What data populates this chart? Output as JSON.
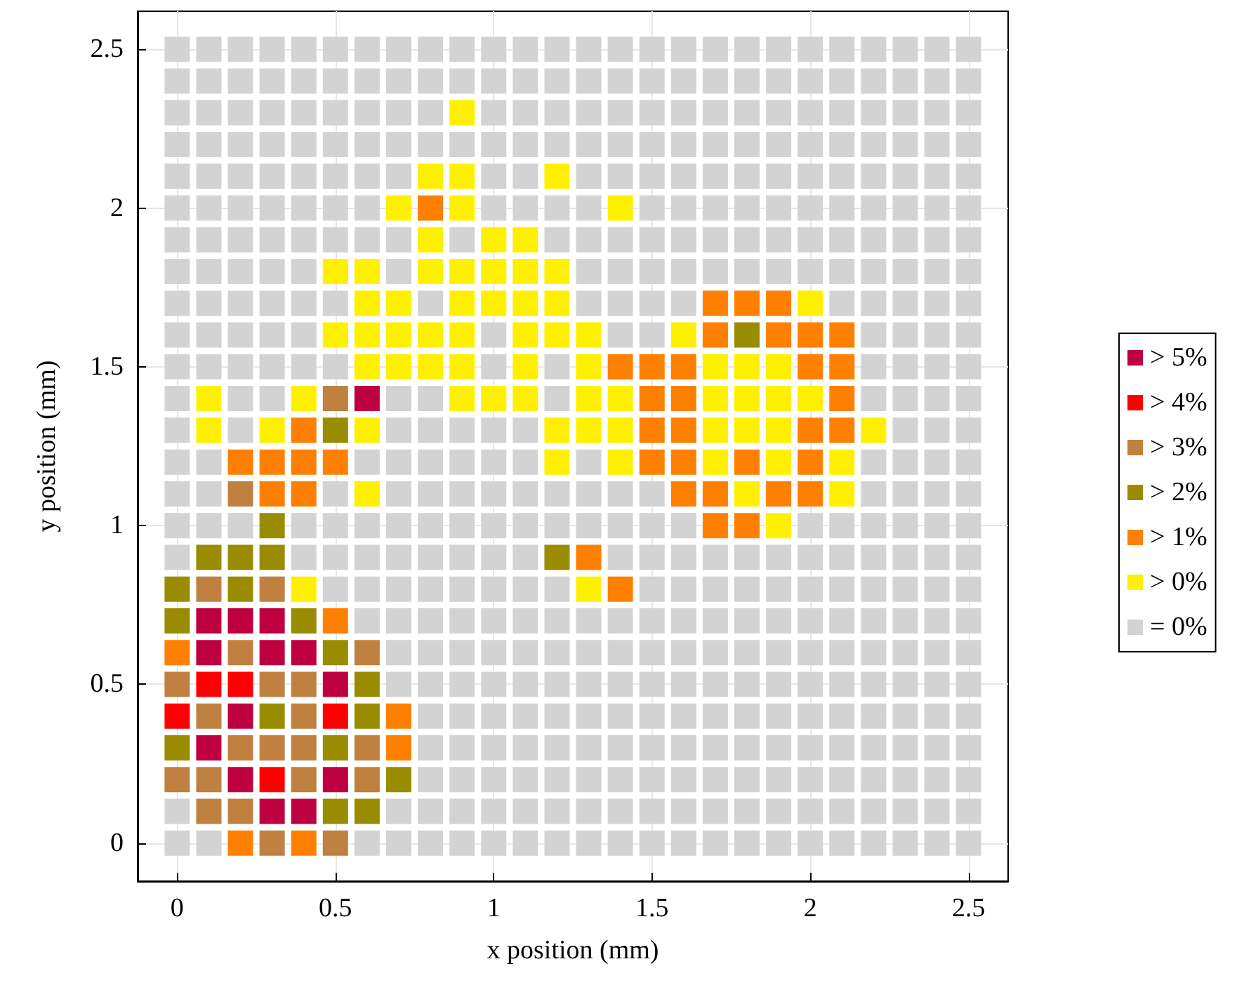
{
  "chart_data": {
    "type": "scatter",
    "xlabel": "x position (mm)",
    "ylabel": "y position (mm)",
    "xlim": [
      -0.125,
      2.625
    ],
    "ylim": [
      -0.12,
      2.62
    ],
    "xticks": [
      0,
      0.5,
      1,
      1.5,
      2,
      2.5
    ],
    "yticks": [
      0,
      0.5,
      1,
      1.5,
      2,
      2.5
    ],
    "grid": true,
    "legend": "right",
    "marker": "square",
    "series": [
      {
        "name": "> 5%",
        "color": "#bf0040",
        "x": [
          0.3,
          0.4,
          0.2,
          0.5,
          0.1,
          0.2,
          0.5,
          0.1,
          0.3,
          0.4,
          0.1,
          0.2,
          0.3,
          0.6
        ],
        "values": [
          0.1,
          0.1,
          0.2,
          0.2,
          0.3,
          0.4,
          0.5,
          0.6,
          0.6,
          0.6,
          0.7,
          0.7,
          0.7,
          1.4
        ]
      },
      {
        "name": "> 4%",
        "color": "#ff0000",
        "x": [
          0.3,
          0,
          0.5,
          0.1,
          0.2
        ],
        "values": [
          0.2,
          0.4,
          0.4,
          0.5,
          0.5
        ]
      },
      {
        "name": "> 3%",
        "color": "#bf8040",
        "x": [
          0.3,
          0.5,
          0.1,
          0.2,
          0,
          0.1,
          0.4,
          0.6,
          0.2,
          0.3,
          0.4,
          0.6,
          0.1,
          0.4,
          0,
          0.3,
          0.4,
          0.2,
          0.6,
          0.1,
          0.3,
          0.2,
          0.5
        ],
        "values": [
          0,
          0,
          0.1,
          0.1,
          0.2,
          0.2,
          0.2,
          0.2,
          0.3,
          0.3,
          0.3,
          0.3,
          0.4,
          0.4,
          0.5,
          0.5,
          0.5,
          0.6,
          0.6,
          0.8,
          0.8,
          1.1,
          1.4
        ]
      },
      {
        "name": "> 2%",
        "color": "#998c00",
        "x": [
          0.5,
          0.6,
          0.7,
          0,
          0.5,
          0.3,
          0.6,
          0.6,
          0.5,
          0,
          0.4,
          0,
          0.2,
          0.1,
          0.2,
          0.3,
          1.2,
          0.3,
          0.5,
          1.8
        ],
        "values": [
          0.1,
          0.1,
          0.2,
          0.3,
          0.3,
          0.4,
          0.4,
          0.5,
          0.6,
          0.7,
          0.7,
          0.8,
          0.8,
          0.9,
          0.9,
          0.9,
          0.9,
          1,
          1.3,
          1.6
        ]
      },
      {
        "name": "> 1%",
        "color": "#ff8000",
        "x": [
          0.2,
          0.4,
          0.7,
          0.7,
          0,
          0.5,
          1.4,
          1.3,
          1.7,
          1.8,
          0.3,
          0.4,
          1.6,
          1.7,
          1.9,
          2,
          0.2,
          0.3,
          0.4,
          0.5,
          1.5,
          1.6,
          1.8,
          2,
          0.4,
          1.5,
          1.6,
          2,
          2.1,
          1.5,
          1.6,
          2.1,
          1.4,
          1.5,
          1.6,
          2,
          2.1,
          1.7,
          1.9,
          2,
          2.1,
          1.7,
          1.8,
          1.9,
          0.8
        ],
        "values": [
          0,
          0,
          0.3,
          0.4,
          0.6,
          0.7,
          0.8,
          0.9,
          1,
          1,
          1.1,
          1.1,
          1.1,
          1.1,
          1.1,
          1.1,
          1.2,
          1.2,
          1.2,
          1.2,
          1.2,
          1.2,
          1.2,
          1.2,
          1.3,
          1.3,
          1.3,
          1.3,
          1.3,
          1.4,
          1.4,
          1.4,
          1.5,
          1.5,
          1.5,
          1.5,
          1.5,
          1.6,
          1.6,
          1.6,
          1.6,
          1.7,
          1.7,
          1.7,
          2
        ]
      },
      {
        "name": "> 0%",
        "color": "#fff000",
        "x": [
          0.4,
          1.3,
          1.9,
          0.6,
          1.8,
          2.1,
          1.2,
          1.4,
          1.7,
          1.9,
          2.1,
          0.1,
          0.3,
          0.6,
          1.2,
          1.3,
          1.4,
          1.7,
          1.8,
          1.9,
          2.2,
          0.1,
          0.4,
          0.9,
          1,
          1.1,
          1.3,
          1.4,
          1.7,
          1.8,
          1.9,
          2,
          0.6,
          0.7,
          0.8,
          0.9,
          1.1,
          1.3,
          1.7,
          1.8,
          1.9,
          0.5,
          0.6,
          0.7,
          0.8,
          0.9,
          1.1,
          1.2,
          1.3,
          1.6,
          0.6,
          0.7,
          0.9,
          1,
          1.1,
          1.2,
          2,
          0.5,
          0.6,
          0.8,
          0.9,
          1,
          1.1,
          1.2,
          0.8,
          1,
          1.1,
          0.7,
          0.9,
          1.4,
          0.8,
          0.9,
          1.2,
          0.9
        ],
        "values": [
          0.8,
          0.8,
          1,
          1.1,
          1.1,
          1.1,
          1.2,
          1.2,
          1.2,
          1.2,
          1.2,
          1.3,
          1.3,
          1.3,
          1.3,
          1.3,
          1.3,
          1.3,
          1.3,
          1.3,
          1.3,
          1.4,
          1.4,
          1.4,
          1.4,
          1.4,
          1.4,
          1.4,
          1.4,
          1.4,
          1.4,
          1.4,
          1.5,
          1.5,
          1.5,
          1.5,
          1.5,
          1.5,
          1.5,
          1.5,
          1.5,
          1.6,
          1.6,
          1.6,
          1.6,
          1.6,
          1.6,
          1.6,
          1.6,
          1.6,
          1.7,
          1.7,
          1.7,
          1.7,
          1.7,
          1.7,
          1.7,
          1.8,
          1.8,
          1.8,
          1.8,
          1.8,
          1.8,
          1.8,
          1.9,
          1.9,
          1.9,
          2,
          2,
          2,
          2.1,
          2.1,
          2.1,
          2.3
        ]
      },
      {
        "name": "= 0%",
        "color": "#d3d3d3",
        "x": [
          0,
          0.1,
          0.6,
          0.7,
          0.8,
          0.9,
          1,
          1.1,
          1.2,
          1.3,
          1.4,
          1.5,
          1.6,
          1.7,
          1.8,
          1.9,
          2,
          2.1,
          2.2,
          2.3,
          2.4,
          2.5,
          0,
          0.7,
          0.8,
          0.9,
          1,
          1.1,
          1.2,
          1.3,
          1.4,
          1.5,
          1.6,
          1.7,
          1.8,
          1.9,
          2,
          2.1,
          2.2,
          2.3,
          2.4,
          2.5,
          0.8,
          0.9,
          1,
          1.1,
          1.2,
          1.3,
          1.4,
          1.5,
          1.6,
          1.7,
          1.8,
          1.9,
          2,
          2.1,
          2.2,
          2.3,
          2.4,
          2.5,
          0.8,
          0.9,
          1,
          1.1,
          1.2,
          1.3,
          1.4,
          1.5,
          1.6,
          1.7,
          1.8,
          1.9,
          2,
          2.1,
          2.2,
          2.3,
          2.4,
          2.5,
          0.8,
          0.9,
          1,
          1.1,
          1.2,
          1.3,
          1.4,
          1.5,
          1.6,
          1.7,
          1.8,
          1.9,
          2,
          2.1,
          2.2,
          2.3,
          2.4,
          2.5,
          0.7,
          0.8,
          0.9,
          1,
          1.1,
          1.2,
          1.3,
          1.4,
          1.5,
          1.6,
          1.7,
          1.8,
          1.9,
          2,
          2.1,
          2.2,
          2.3,
          2.4,
          2.5,
          0.7,
          0.8,
          0.9,
          1,
          1.1,
          1.2,
          1.3,
          1.4,
          1.5,
          1.6,
          1.7,
          1.8,
          1.9,
          2,
          2.1,
          2.2,
          2.3,
          2.4,
          2.5,
          0.6,
          0.7,
          0.8,
          0.9,
          1,
          1.1,
          1.2,
          1.3,
          1.4,
          1.5,
          1.6,
          1.7,
          1.8,
          1.9,
          2,
          2.1,
          2.2,
          2.3,
          2.4,
          2.5,
          0.5,
          0.6,
          0.7,
          0.8,
          0.9,
          1,
          1.1,
          1.2,
          1.5,
          1.6,
          1.7,
          1.8,
          1.9,
          2,
          2.1,
          2.2,
          2.3,
          2.4,
          2.5,
          0,
          0.4,
          0.5,
          0.6,
          0.7,
          0.8,
          0.9,
          1,
          1.1,
          1.4,
          1.5,
          1.6,
          1.7,
          1.8,
          1.9,
          2,
          2.1,
          2.2,
          2.3,
          2.4,
          2.5,
          0,
          0.1,
          0.2,
          0.4,
          0.5,
          0.6,
          0.7,
          0.8,
          0.9,
          1,
          1.1,
          1.2,
          1.3,
          1.4,
          1.5,
          1.6,
          2,
          2.1,
          2.2,
          2.3,
          2.4,
          2.5,
          0,
          0.1,
          0.5,
          0.7,
          0.8,
          0.9,
          1,
          1.1,
          1.2,
          1.3,
          1.4,
          1.5,
          2.2,
          2.3,
          2.4,
          2.5,
          0,
          0.1,
          0.6,
          0.7,
          0.8,
          0.9,
          1,
          1.1,
          1.3,
          2.2,
          2.3,
          2.4,
          2.5,
          0,
          0.2,
          0.7,
          0.8,
          0.9,
          1,
          1.1,
          2.3,
          2.4,
          2.5,
          0,
          0.2,
          0.3,
          0.7,
          0.8,
          1.2,
          2.2,
          2.3,
          2.4,
          2.5,
          0,
          0.1,
          0.2,
          0.3,
          0.4,
          0.5,
          1,
          1.2,
          2.2,
          2.3,
          2.4,
          2.5,
          0,
          0.1,
          0.2,
          0.3,
          0.4,
          1,
          1.4,
          1.5,
          2.2,
          2.3,
          2.4,
          2.5,
          0,
          0.1,
          0.2,
          0.3,
          0.4,
          0.5,
          0.8,
          1.3,
          1.4,
          1.5,
          1.6,
          2.1,
          2.2,
          2.3,
          2.4,
          2.5,
          0,
          0.1,
          0.2,
          0.3,
          0.4,
          0.7,
          1.3,
          1.4,
          1.5,
          1.6,
          1.7,
          1.8,
          1.9,
          2,
          2.1,
          2.2,
          2.3,
          2.4,
          2.5,
          0,
          0.1,
          0.2,
          0.3,
          0.4,
          0.5,
          0.6,
          0.7,
          0.9,
          1.2,
          1.3,
          1.4,
          1.5,
          1.6,
          1.7,
          1.8,
          1.9,
          2,
          2.1,
          2.2,
          2.3,
          2.4,
          2.5,
          0,
          0.1,
          0.2,
          0.3,
          0.4,
          0.5,
          0.6,
          1,
          1.1,
          1.2,
          1.3,
          1.5,
          1.6,
          1.7,
          1.8,
          1.9,
          2,
          2.1,
          2.2,
          2.3,
          2.4,
          2.5,
          0,
          0.1,
          0.2,
          0.3,
          0.4,
          0.5,
          0.6,
          0.7,
          1,
          1.1,
          1.3,
          1.4,
          1.5,
          1.6,
          1.7,
          1.8,
          1.9,
          2,
          2.1,
          2.2,
          2.3,
          2.4,
          2.5,
          0,
          0.1,
          0.2,
          0.3,
          0.4,
          0.5,
          0.6,
          0.7,
          0.8,
          0.9,
          1,
          1.1,
          1.2,
          1.3,
          1.4,
          1.5,
          1.6,
          1.7,
          1.8,
          1.9,
          2,
          2.1,
          2.2,
          2.3,
          2.4,
          2.5,
          0,
          0.1,
          0.2,
          0.3,
          0.4,
          0.5,
          0.6,
          0.7,
          0.8,
          1,
          1.1,
          1.2,
          1.3,
          1.4,
          1.5,
          1.6,
          1.7,
          1.8,
          1.9,
          2,
          2.1,
          2.2,
          2.3,
          2.4,
          2.5,
          0,
          0.1,
          0.2,
          0.3,
          0.4,
          0.5,
          0.6,
          0.7,
          0.8,
          0.9,
          1,
          1.1,
          1.2,
          1.3,
          1.4,
          1.5,
          1.6,
          1.7,
          1.8,
          1.9,
          2,
          2.1,
          2.2,
          2.3,
          2.4,
          2.5,
          0,
          0.1,
          0.2,
          0.3,
          0.4,
          0.5,
          0.6,
          0.7,
          0.8,
          0.9,
          1,
          1.1,
          1.2,
          1.3,
          1.4,
          1.5,
          1.6,
          1.7,
          1.8,
          1.9,
          2,
          2.1,
          2.2,
          2.3,
          2.4,
          2.5
        ],
        "values": [
          0,
          0,
          0,
          0,
          0,
          0,
          0,
          0,
          0,
          0,
          0,
          0,
          0,
          0,
          0,
          0,
          0,
          0,
          0,
          0,
          0,
          0,
          0.1,
          0.1,
          0.1,
          0.1,
          0.1,
          0.1,
          0.1,
          0.1,
          0.1,
          0.1,
          0.1,
          0.1,
          0.1,
          0.1,
          0.1,
          0.1,
          0.1,
          0.1,
          0.1,
          0.1,
          0.2,
          0.2,
          0.2,
          0.2,
          0.2,
          0.2,
          0.2,
          0.2,
          0.2,
          0.2,
          0.2,
          0.2,
          0.2,
          0.2,
          0.2,
          0.2,
          0.2,
          0.2,
          0.3,
          0.3,
          0.3,
          0.3,
          0.3,
          0.3,
          0.3,
          0.3,
          0.3,
          0.3,
          0.3,
          0.3,
          0.3,
          0.3,
          0.3,
          0.3,
          0.3,
          0.3,
          0.4,
          0.4,
          0.4,
          0.4,
          0.4,
          0.4,
          0.4,
          0.4,
          0.4,
          0.4,
          0.4,
          0.4,
          0.4,
          0.4,
          0.4,
          0.4,
          0.4,
          0.4,
          0.5,
          0.5,
          0.5,
          0.5,
          0.5,
          0.5,
          0.5,
          0.5,
          0.5,
          0.5,
          0.5,
          0.5,
          0.5,
          0.5,
          0.5,
          0.5,
          0.5,
          0.5,
          0.5,
          0.6,
          0.6,
          0.6,
          0.6,
          0.6,
          0.6,
          0.6,
          0.6,
          0.6,
          0.6,
          0.6,
          0.6,
          0.6,
          0.6,
          0.6,
          0.6,
          0.6,
          0.6,
          0.6,
          0.7,
          0.7,
          0.7,
          0.7,
          0.7,
          0.7,
          0.7,
          0.7,
          0.7,
          0.7,
          0.7,
          0.7,
          0.7,
          0.7,
          0.7,
          0.7,
          0.7,
          0.7,
          0.7,
          0.7,
          0.8,
          0.8,
          0.8,
          0.8,
          0.8,
          0.8,
          0.8,
          0.8,
          0.8,
          0.8,
          0.8,
          0.8,
          0.8,
          0.8,
          0.8,
          0.8,
          0.8,
          0.8,
          0.8,
          0.9,
          0.9,
          0.9,
          0.9,
          0.9,
          0.9,
          0.9,
          0.9,
          0.9,
          0.9,
          0.9,
          0.9,
          0.9,
          0.9,
          0.9,
          0.9,
          0.9,
          0.9,
          0.9,
          0.9,
          0.9,
          1,
          1,
          1,
          1,
          1,
          1,
          1,
          1,
          1,
          1,
          1,
          1,
          1,
          1,
          1,
          1,
          1,
          1,
          1,
          1,
          1,
          1,
          1.1,
          1.1,
          1.1,
          1.1,
          1.1,
          1.1,
          1.1,
          1.1,
          1.1,
          1.1,
          1.1,
          1.1,
          1.1,
          1.1,
          1.1,
          1.1,
          1.2,
          1.2,
          1.2,
          1.2,
          1.2,
          1.2,
          1.2,
          1.2,
          1.2,
          1.2,
          1.2,
          1.2,
          1.2,
          1.3,
          1.3,
          1.3,
          1.3,
          1.3,
          1.3,
          1.3,
          1.3,
          1.3,
          1.3,
          1.4,
          1.4,
          1.4,
          1.4,
          1.4,
          1.4,
          1.4,
          1.4,
          1.4,
          1.4,
          1.5,
          1.5,
          1.5,
          1.5,
          1.5,
          1.5,
          1.5,
          1.5,
          1.5,
          1.5,
          1.5,
          1.5,
          1.6,
          1.6,
          1.6,
          1.6,
          1.6,
          1.6,
          1.6,
          1.6,
          1.6,
          1.6,
          1.6,
          1.6,
          1.7,
          1.7,
          1.7,
          1.7,
          1.7,
          1.7,
          1.7,
          1.7,
          1.7,
          1.7,
          1.7,
          1.7,
          1.7,
          1.7,
          1.7,
          1.7,
          1.8,
          1.8,
          1.8,
          1.8,
          1.8,
          1.8,
          1.8,
          1.8,
          1.8,
          1.8,
          1.8,
          1.8,
          1.8,
          1.8,
          1.8,
          1.8,
          1.8,
          1.8,
          1.8,
          1.9,
          1.9,
          1.9,
          1.9,
          1.9,
          1.9,
          1.9,
          1.9,
          1.9,
          1.9,
          1.9,
          1.9,
          1.9,
          1.9,
          1.9,
          1.9,
          1.9,
          1.9,
          1.9,
          1.9,
          1.9,
          1.9,
          1.9,
          2,
          2,
          2,
          2,
          2,
          2,
          2,
          2,
          2,
          2,
          2,
          2,
          2,
          2,
          2,
          2,
          2,
          2,
          2,
          2,
          2,
          2,
          2.1,
          2.1,
          2.1,
          2.1,
          2.1,
          2.1,
          2.1,
          2.1,
          2.1,
          2.1,
          2.1,
          2.1,
          2.1,
          2.1,
          2.1,
          2.1,
          2.1,
          2.1,
          2.1,
          2.1,
          2.1,
          2.1,
          2.1,
          2.2,
          2.2,
          2.2,
          2.2,
          2.2,
          2.2,
          2.2,
          2.2,
          2.2,
          2.2,
          2.2,
          2.2,
          2.2,
          2.2,
          2.2,
          2.2,
          2.2,
          2.2,
          2.2,
          2.2,
          2.2,
          2.2,
          2.2,
          2.2,
          2.2,
          2.2,
          2.3,
          2.3,
          2.3,
          2.3,
          2.3,
          2.3,
          2.3,
          2.3,
          2.3,
          2.3,
          2.3,
          2.3,
          2.3,
          2.3,
          2.3,
          2.3,
          2.3,
          2.3,
          2.3,
          2.3,
          2.3,
          2.3,
          2.3,
          2.3,
          2.3,
          2.4,
          2.4,
          2.4,
          2.4,
          2.4,
          2.4,
          2.4,
          2.4,
          2.4,
          2.4,
          2.4,
          2.4,
          2.4,
          2.4,
          2.4,
          2.4,
          2.4,
          2.4,
          2.4,
          2.4,
          2.4,
          2.4,
          2.4,
          2.4,
          2.4,
          2.4,
          2.5,
          2.5,
          2.5,
          2.5,
          2.5,
          2.5,
          2.5,
          2.5,
          2.5,
          2.5,
          2.5,
          2.5,
          2.5,
          2.5,
          2.5,
          2.5,
          2.5,
          2.5,
          2.5,
          2.5,
          2.5,
          2.5,
          2.5,
          2.5,
          2.5,
          2.5
        ]
      }
    ]
  }
}
